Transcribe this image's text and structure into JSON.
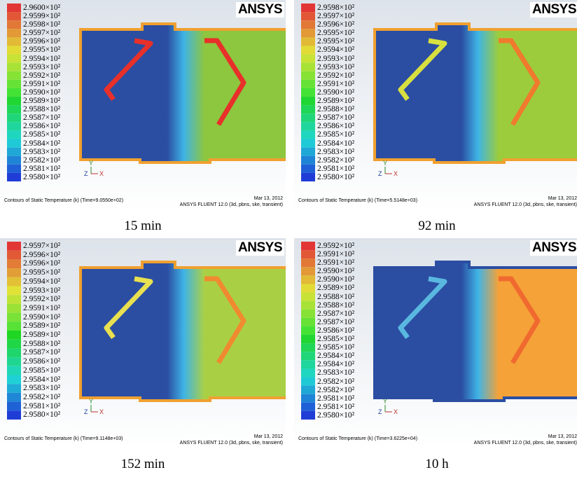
{
  "panels": [
    {
      "logo": "ANSYS",
      "legend": [
        "2.9600×10²",
        "2.9599×10²",
        "2.9598×10²",
        "2.9597×10²",
        "2.9596×10²",
        "2.9595×10²",
        "2.9594×10²",
        "2.9593×10²",
        "2.9592×10²",
        "2.9591×10²",
        "2.9590×10²",
        "2.9589×10²",
        "2.9588×10²",
        "2.9587×10²",
        "2.9586×10²",
        "2.9585×10²",
        "2.9584×10²",
        "2.9583×10²",
        "2.9582×10²",
        "2.9581×10²",
        "2.9580×10²"
      ],
      "axes": [
        "Y",
        "Z",
        "X"
      ],
      "footer_left": "Contours of Static Temperature (k)  (Time=9.0550e+02)",
      "footer_date": "Mar 13, 2012",
      "footer_solver": "ANSYS FLUENT 12.0 (3d, pbns, ske, transient)",
      "caption": "15 min"
    },
    {
      "logo": "ANSYS",
      "legend": [
        "2.9598×10²",
        "2.9597×10²",
        "2.9596×10²",
        "2.9595×10²",
        "2.9595×10²",
        "2.9594×10²",
        "2.9593×10²",
        "2.9593×10²",
        "2.9592×10²",
        "2.9591×10²",
        "2.9590×10²",
        "2.9589×10²",
        "2.9588×10²",
        "2.9587×10²",
        "2.9586×10²",
        "2.9585×10²",
        "2.9584×10²",
        "2.9583×10²",
        "2.9582×10²",
        "2.9581×10²",
        "2.9580×10²"
      ],
      "axes": [
        "Y",
        "Z",
        "X"
      ],
      "footer_left": "Contours of Static Temperature (k)  (Time=5.5148e+03)",
      "footer_date": "Mar 13, 2012",
      "footer_solver": "ANSYS FLUENT 12.0 (3d, pbns, ske, transient)",
      "caption": "92 min"
    },
    {
      "logo": "ANSYS",
      "legend": [
        "2.9597×10²",
        "2.9596×10²",
        "2.9596×10²",
        "2.9595×10²",
        "2.9594×10²",
        "2.9593×10²",
        "2.9592×10²",
        "2.9591×10²",
        "2.9590×10²",
        "2.9589×10²",
        "2.9589×10²",
        "2.9588×10²",
        "2.9587×10²",
        "2.9586×10²",
        "2.9585×10²",
        "2.9584×10²",
        "2.9583×10²",
        "2.9582×10²",
        "2.9581×10²",
        "2.9580×10²"
      ],
      "axes": [
        "Y",
        "Z",
        "X"
      ],
      "footer_left": "Contours of Static Temperature (k)  (Time=9.1148e+03)",
      "footer_date": "Mar 13, 2012",
      "footer_solver": "ANSYS FLUENT 12.0 (3d, pbns, ske, transient)",
      "caption": "152 min"
    },
    {
      "logo": "ANSYS",
      "legend": [
        "2.9592×10²",
        "2.9591×10²",
        "2.9591×10²",
        "2.9590×10²",
        "2.9590×10²",
        "2.9589×10²",
        "2.9588×10²",
        "2.9588×10²",
        "2.9587×10²",
        "2.9587×10²",
        "2.9586×10²",
        "2.9585×10²",
        "2.9585×10²",
        "2.9584×10²",
        "2.9584×10²",
        "2.9583×10²",
        "2.9582×10²",
        "2.9582×10²",
        "2.9581×10²",
        "2.9581×10²",
        "2.9580×10²"
      ],
      "axes": [
        "Y",
        "Z",
        "X"
      ],
      "footer_left": "Contours of Static Temperature (k)  (Time=3.6225e+04)",
      "footer_date": "Mar 13, 2012",
      "footer_solver": "ANSYS FLUENT 12.0 (3d, pbns, ske, transient)",
      "caption": "10 h"
    }
  ]
}
